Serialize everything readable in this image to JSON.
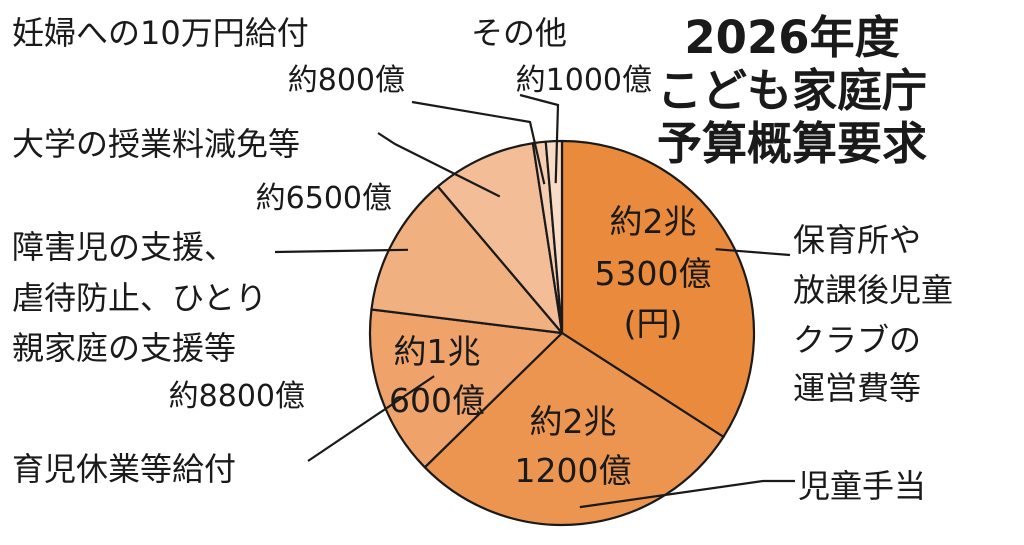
{
  "chart_data": {
    "type": "pie",
    "title": [
      "2026年度",
      "こども家庭庁",
      "予算概算要求"
    ],
    "unit_note": "(円)",
    "slices": [
      {
        "category_lines": [
          "保育所や",
          "放課後児童",
          "クラブの",
          "運営費等"
        ],
        "value": 25300,
        "value_lines": [
          "約2兆",
          "5300億"
        ],
        "color": "#e98a3d"
      },
      {
        "category_lines": [
          "児童手当"
        ],
        "value": 21200,
        "value_lines": [
          "約2兆",
          "1200億"
        ],
        "color": "#ec9550"
      },
      {
        "category_lines": [
          "育児休業等給付"
        ],
        "value": 10600,
        "value_lines": [
          "約1兆",
          "600億"
        ],
        "color": "#efa26a"
      },
      {
        "category_lines": [
          "障害児の支援、",
          "虐待防止、ひとり",
          "親家庭の支援等"
        ],
        "value": 8800,
        "value_lines": [
          "約8800億"
        ],
        "color": "#f0b07f"
      },
      {
        "category_lines": [
          "大学の授業料減免等"
        ],
        "value": 6500,
        "value_lines": [
          "約6500億"
        ],
        "color": "#f3be97"
      },
      {
        "category_lines": [
          "妊婦への10万円給付"
        ],
        "value": 800,
        "value_lines": [
          "約800億"
        ],
        "color": "#f6cfb2"
      },
      {
        "category_lines": [
          "その他"
        ],
        "value": 1000,
        "value_lines": [
          "約1000億"
        ],
        "color": "#f8dcc6"
      }
    ]
  }
}
